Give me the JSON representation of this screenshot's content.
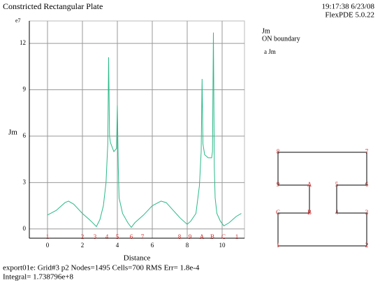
{
  "header": {
    "title": "Constricted Rectangular Plate",
    "timestamp": "19:17:38 6/23/08",
    "version": "FlexPDE 5.0.22"
  },
  "chart_data": {
    "type": "line",
    "y_axis_label": "Jm",
    "x_axis_label": "Distance",
    "y_exponent": "e7",
    "legend_title": "Jm",
    "legend_subtitle": "ON boundary",
    "legend": "right",
    "x": [
      0,
      0.5,
      1.0,
      1.2,
      1.5,
      2.0,
      2.5,
      2.8,
      3.0,
      3.2,
      3.35,
      3.45,
      3.5,
      3.55,
      3.6,
      3.8,
      3.95,
      4.0,
      4.05,
      4.1,
      4.3,
      4.6,
      4.8,
      5.0,
      5.5,
      6.0,
      6.5,
      6.8,
      7.2,
      7.6,
      8.0,
      8.2,
      8.5,
      8.7,
      8.8,
      8.85,
      8.9,
      9.0,
      9.2,
      9.4,
      9.45,
      9.5,
      9.55,
      9.6,
      9.7,
      9.9,
      10.1,
      10.4,
      10.8,
      11.1
    ],
    "series": [
      {
        "name": "a Jm",
        "color": "#2ab98a",
        "values": [
          0.9,
          1.2,
          1.7,
          1.8,
          1.6,
          1.0,
          0.5,
          0.15,
          0.6,
          1.5,
          3.0,
          5.5,
          11.1,
          6.0,
          5.6,
          5.0,
          5.2,
          8.0,
          4.0,
          2.0,
          1.0,
          0.4,
          0.1,
          0.4,
          0.9,
          1.5,
          1.8,
          1.7,
          1.2,
          0.7,
          0.3,
          0.5,
          1.0,
          2.8,
          5.0,
          9.7,
          5.5,
          4.8,
          4.6,
          4.6,
          5.0,
          12.7,
          4.0,
          2.0,
          1.0,
          0.5,
          0.2,
          0.4,
          0.8,
          1.0
        ]
      }
    ],
    "xlim": [
      -1.04,
      11.28
    ],
    "ylim": [
      -0.6,
      13.45
    ],
    "xticks": [
      0,
      2,
      4,
      6,
      8,
      10
    ],
    "yticks": [
      0,
      3,
      6,
      9,
      12
    ],
    "grid": true,
    "point_markers": {
      "labels": [
        "1",
        "2",
        "3",
        "4",
        "5",
        "6",
        "7",
        "8",
        "9",
        "A",
        "B",
        "C",
        "1"
      ],
      "x": [
        0,
        2,
        2.72,
        3.4,
        4,
        4.8,
        5.44,
        7.56,
        8.16,
        8.84,
        9.44,
        10.08,
        10.84
      ]
    }
  },
  "boundary_diagram": {
    "labels": [
      "8",
      "7",
      "9",
      "A",
      "5",
      "6",
      "C",
      "B",
      "4",
      "3",
      "1",
      "2"
    ]
  },
  "footer": {
    "line1": "export01e:  Grid#3  p2  Nodes=1495 Cells=700 RMS Err= 1.8e-4",
    "line2": "Integral=  1.738796e+8"
  }
}
